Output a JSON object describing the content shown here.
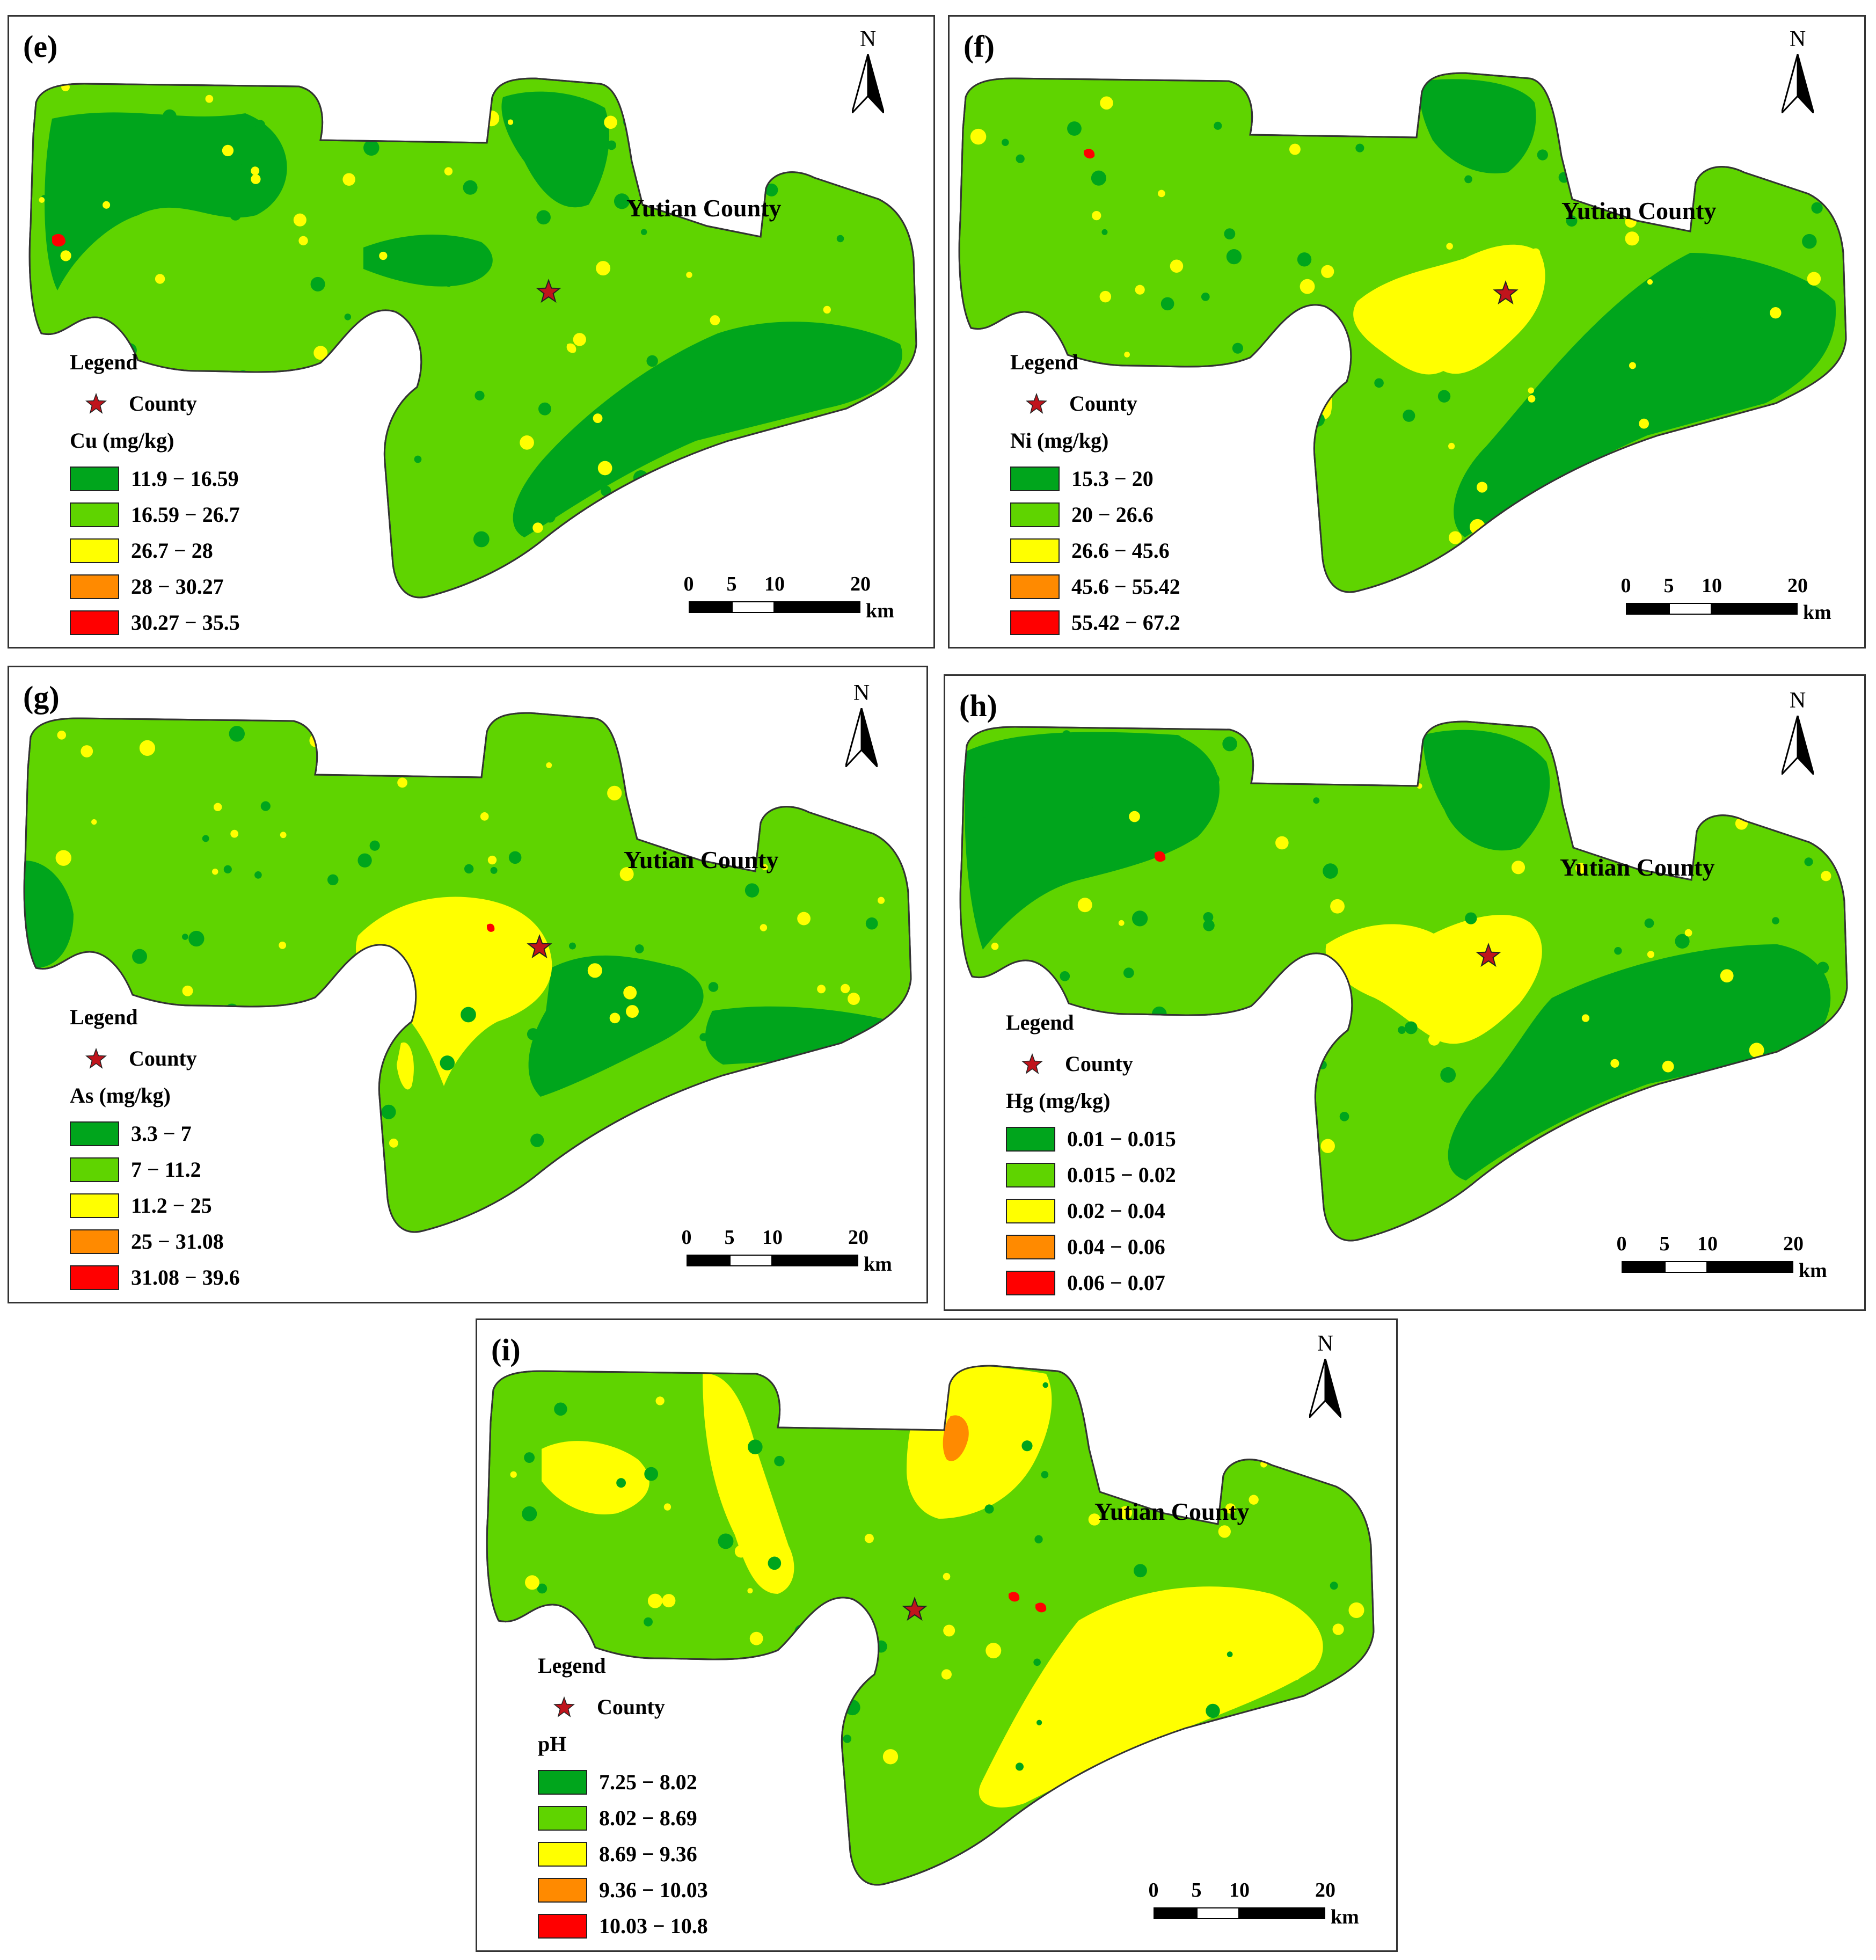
{
  "colors": {
    "class1": "#00a51c",
    "class2": "#5fd400",
    "class3": "#ffff00",
    "class4": "#ff8a00",
    "class5": "#ff0000",
    "star": "#c0141c",
    "outline": "#333333"
  },
  "common": {
    "legend_title": "Legend",
    "county_marker_label": "County",
    "county_name": "Yutian County",
    "north_label": "N",
    "scale_ticks": [
      "0",
      "5",
      "10",
      "20"
    ],
    "scale_unit": "km"
  },
  "panels": [
    {
      "label": "(e)",
      "variable": "Cu (mg/kg)",
      "classes": [
        "11.9 − 16.59",
        "16.59 − 26.7",
        "26.7 − 28",
        "28 − 30.27",
        "30.27 − 35.5"
      ],
      "dominant_class": 2
    },
    {
      "label": "(f)",
      "variable": "Ni (mg/kg)",
      "classes": [
        "15.3 − 20",
        "20 − 26.6",
        "26.6 − 45.6",
        "45.6 − 55.42",
        "55.42 − 67.2"
      ],
      "dominant_class": 2
    },
    {
      "label": "(g)",
      "variable": "As (mg/kg)",
      "classes": [
        "3.3 − 7",
        "7 − 11.2",
        "11.2 − 25",
        "25 − 31.08",
        "31.08 − 39.6"
      ],
      "dominant_class": 2
    },
    {
      "label": "(h)",
      "variable": "Hg (mg/kg)",
      "classes": [
        "0.01 − 0.015",
        "0.015 − 0.02",
        "0.02 − 0.04",
        "0.04 − 0.06",
        "0.06 − 0.07"
      ],
      "dominant_class": 2
    },
    {
      "label": "(i)",
      "variable": "pH",
      "classes": [
        "7.25 − 8.02",
        "8.02 − 8.69",
        "8.69 − 9.36",
        "9.36 − 10.03",
        "10.03 − 10.8"
      ],
      "dominant_class": 2
    }
  ]
}
